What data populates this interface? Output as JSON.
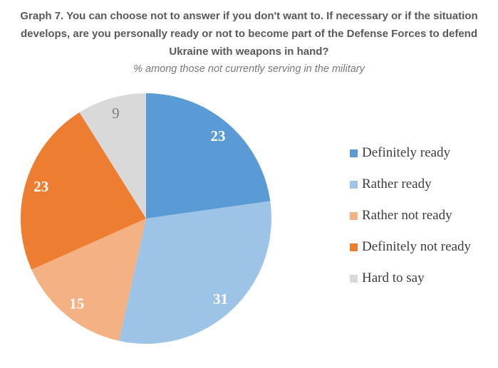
{
  "chart_data": {
    "type": "pie",
    "title": "Graph 7. You can choose not to answer if you don't want to. If necessary or if the situation develops, are you personally ready or not to become part of the Defense Forces to defend Ukraine with weapons in hand?",
    "title_lines": [
      "Graph 7. You can choose not to answer if you don't want to. If necessary or if the situation",
      "develops, are you personally ready or not to become part of the Defense Forces to defend",
      "Ukraine with weapons in hand?"
    ],
    "subtitle": "% among those not currently serving in the military",
    "unit": "percent",
    "direction": "clockwise",
    "start_angle_deg": 0,
    "legend_position": "right",
    "title_color": "#58595b",
    "subtitle_color": "#77787a",
    "legend_text_color": "#3d3d3d",
    "background_color": "#ffffff",
    "segments": [
      {
        "label": "Definitely ready",
        "value": 23,
        "color": "#5b9bd5",
        "label_color": "#ffffff"
      },
      {
        "label": "Rather ready",
        "value": 31,
        "color": "#9dc3e6",
        "label_color": "#ffffff"
      },
      {
        "label": "Rather not ready",
        "value": 15,
        "color": "#f4b183",
        "label_color": "#ffffff"
      },
      {
        "label": "Definitely not ready",
        "value": 23,
        "color": "#ed7d31",
        "label_color": "#ffffff"
      },
      {
        "label": "Hard to say",
        "value": 9,
        "color": "#d9d9d9",
        "label_color": "#7f7f7f"
      }
    ]
  }
}
